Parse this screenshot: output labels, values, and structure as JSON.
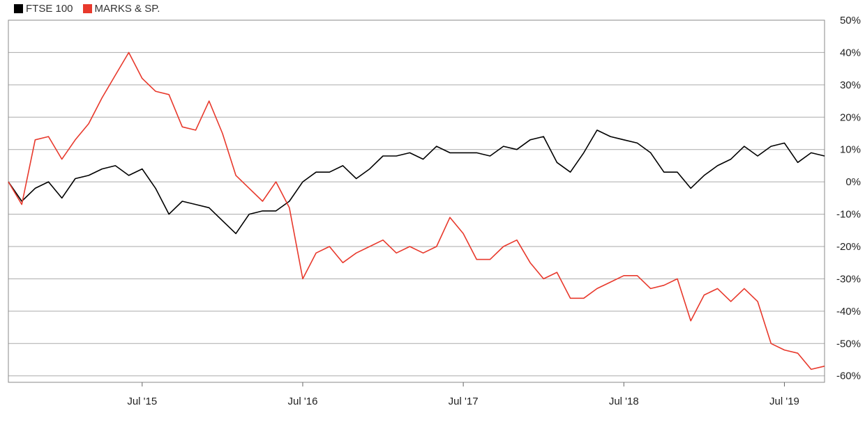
{
  "chart_data": {
    "type": "line",
    "legend_position": "top-left",
    "grid": true,
    "x_ticks": [
      "Jul '15",
      "Jul '16",
      "Jul '17",
      "Jul '18",
      "Jul '19"
    ],
    "y_ticks": [
      "50%",
      "40%",
      "30%",
      "20%",
      "10%",
      "0%",
      "-10%",
      "-20%",
      "-30%",
      "-40%",
      "-50%",
      "-60%"
    ],
    "x_range": [
      "2014-09",
      "2019-10"
    ],
    "ylim": [
      -62,
      50
    ],
    "series": [
      {
        "name": "FTSE 100",
        "color": "#000000",
        "points": [
          [
            "2014-09",
            0
          ],
          [
            "2014-10",
            -6
          ],
          [
            "2014-11",
            -2
          ],
          [
            "2014-12",
            0
          ],
          [
            "2015-01",
            -5
          ],
          [
            "2015-02",
            1
          ],
          [
            "2015-03",
            2
          ],
          [
            "2015-04",
            4
          ],
          [
            "2015-05",
            5
          ],
          [
            "2015-06",
            2
          ],
          [
            "2015-07",
            4
          ],
          [
            "2015-08",
            -2
          ],
          [
            "2015-09",
            -10
          ],
          [
            "2015-10",
            -6
          ],
          [
            "2015-11",
            -7
          ],
          [
            "2015-12",
            -8
          ],
          [
            "2016-01",
            -12
          ],
          [
            "2016-02",
            -16
          ],
          [
            "2016-03",
            -10
          ],
          [
            "2016-04",
            -9
          ],
          [
            "2016-05",
            -9
          ],
          [
            "2016-06",
            -6
          ],
          [
            "2016-07",
            0
          ],
          [
            "2016-08",
            3
          ],
          [
            "2016-09",
            3
          ],
          [
            "2016-10",
            5
          ],
          [
            "2016-11",
            1
          ],
          [
            "2016-12",
            4
          ],
          [
            "2017-01",
            8
          ],
          [
            "2017-02",
            8
          ],
          [
            "2017-03",
            9
          ],
          [
            "2017-04",
            7
          ],
          [
            "2017-05",
            11
          ],
          [
            "2017-06",
            9
          ],
          [
            "2017-07",
            9
          ],
          [
            "2017-08",
            9
          ],
          [
            "2017-09",
            8
          ],
          [
            "2017-10",
            11
          ],
          [
            "2017-11",
            10
          ],
          [
            "2017-12",
            13
          ],
          [
            "2018-01",
            14
          ],
          [
            "2018-02",
            6
          ],
          [
            "2018-03",
            3
          ],
          [
            "2018-04",
            9
          ],
          [
            "2018-05",
            16
          ],
          [
            "2018-06",
            14
          ],
          [
            "2018-07",
            13
          ],
          [
            "2018-08",
            12
          ],
          [
            "2018-09",
            9
          ],
          [
            "2018-10",
            3
          ],
          [
            "2018-11",
            3
          ],
          [
            "2018-12",
            -2
          ],
          [
            "2019-01",
            2
          ],
          [
            "2019-02",
            5
          ],
          [
            "2019-03",
            7
          ],
          [
            "2019-04",
            11
          ],
          [
            "2019-05",
            8
          ],
          [
            "2019-06",
            11
          ],
          [
            "2019-07",
            12
          ],
          [
            "2019-08",
            6
          ],
          [
            "2019-09",
            9
          ],
          [
            "2019-10",
            8
          ]
        ]
      },
      {
        "name": "MARKS & SP.",
        "color": "#e8392c",
        "points": [
          [
            "2014-09",
            0
          ],
          [
            "2014-10",
            -7
          ],
          [
            "2014-11",
            13
          ],
          [
            "2014-12",
            14
          ],
          [
            "2015-01",
            7
          ],
          [
            "2015-02",
            13
          ],
          [
            "2015-03",
            18
          ],
          [
            "2015-04",
            26
          ],
          [
            "2015-05",
            33
          ],
          [
            "2015-06",
            40
          ],
          [
            "2015-07",
            32
          ],
          [
            "2015-08",
            28
          ],
          [
            "2015-09",
            27
          ],
          [
            "2015-10",
            17
          ],
          [
            "2015-11",
            16
          ],
          [
            "2015-12",
            25
          ],
          [
            "2016-01",
            15
          ],
          [
            "2016-02",
            2
          ],
          [
            "2016-03",
            -2
          ],
          [
            "2016-04",
            -6
          ],
          [
            "2016-05",
            0
          ],
          [
            "2016-06",
            -8
          ],
          [
            "2016-07",
            -30
          ],
          [
            "2016-08",
            -22
          ],
          [
            "2016-09",
            -20
          ],
          [
            "2016-10",
            -25
          ],
          [
            "2016-11",
            -22
          ],
          [
            "2016-12",
            -20
          ],
          [
            "2017-01",
            -18
          ],
          [
            "2017-02",
            -22
          ],
          [
            "2017-03",
            -20
          ],
          [
            "2017-04",
            -22
          ],
          [
            "2017-05",
            -20
          ],
          [
            "2017-06",
            -11
          ],
          [
            "2017-07",
            -16
          ],
          [
            "2017-08",
            -24
          ],
          [
            "2017-09",
            -24
          ],
          [
            "2017-10",
            -20
          ],
          [
            "2017-11",
            -18
          ],
          [
            "2017-12",
            -25
          ],
          [
            "2018-01",
            -30
          ],
          [
            "2018-02",
            -28
          ],
          [
            "2018-03",
            -36
          ],
          [
            "2018-04",
            -36
          ],
          [
            "2018-05",
            -33
          ],
          [
            "2018-06",
            -31
          ],
          [
            "2018-07",
            -29
          ],
          [
            "2018-08",
            -29
          ],
          [
            "2018-09",
            -33
          ],
          [
            "2018-10",
            -32
          ],
          [
            "2018-11",
            -30
          ],
          [
            "2018-12",
            -43
          ],
          [
            "2019-01",
            -35
          ],
          [
            "2019-02",
            -33
          ],
          [
            "2019-03",
            -37
          ],
          [
            "2019-04",
            -33
          ],
          [
            "2019-05",
            -37
          ],
          [
            "2019-06",
            -50
          ],
          [
            "2019-07",
            -52
          ],
          [
            "2019-08",
            -53
          ],
          [
            "2019-09",
            -58
          ],
          [
            "2019-10",
            -57
          ]
        ]
      }
    ]
  }
}
